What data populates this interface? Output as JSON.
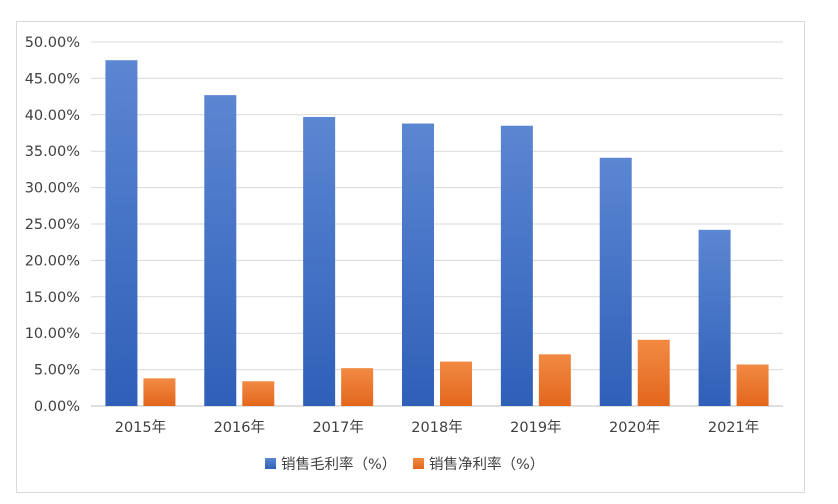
{
  "chart_data": {
    "type": "bar",
    "categories": [
      "2015年",
      "2016年",
      "2017年",
      "2018年",
      "2019年",
      "2020年",
      "2021年"
    ],
    "series": [
      {
        "name": "销售毛利率（%）",
        "color": "#4472c4",
        "values": [
          47.5,
          42.7,
          39.7,
          38.8,
          38.5,
          34.1,
          24.2
        ]
      },
      {
        "name": "销售净利率（%）",
        "color": "#ed7d31",
        "values": [
          3.8,
          3.4,
          5.2,
          6.1,
          7.1,
          9.1,
          5.7
        ]
      }
    ],
    "yticks": [
      "0.00%",
      "5.00%",
      "10.00%",
      "15.00%",
      "20.00%",
      "25.00%",
      "30.00%",
      "35.00%",
      "40.00%",
      "45.00%",
      "50.00%"
    ],
    "ylim": [
      0,
      50
    ],
    "grid": true,
    "legend_position": "bottom",
    "title": "",
    "xlabel": "",
    "ylabel": ""
  }
}
